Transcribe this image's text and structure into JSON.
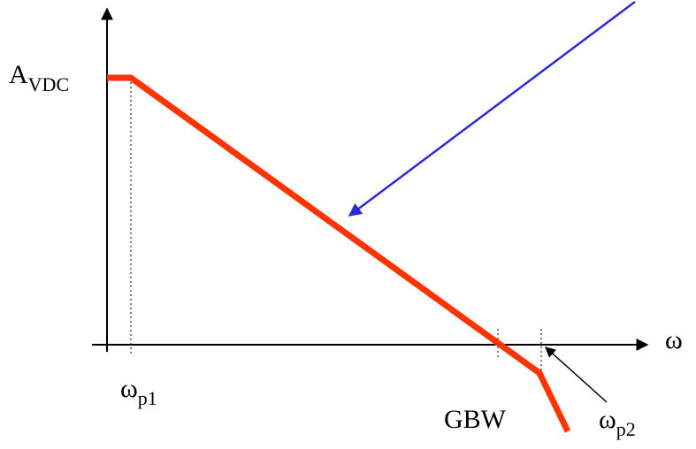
{
  "diagram": {
    "labels": {
      "y_level": {
        "main": "A",
        "sub": "VDC"
      },
      "x_axis": {
        "main": "ω"
      },
      "pole1": {
        "main": "ω",
        "sub": "p1"
      },
      "gbw": {
        "main": "GBW"
      },
      "pole2": {
        "main": "ω",
        "sub": "p2"
      }
    },
    "colors": {
      "response": "#ff3300",
      "pointer": "#2b2bd6",
      "axes": "#000000"
    }
  }
}
